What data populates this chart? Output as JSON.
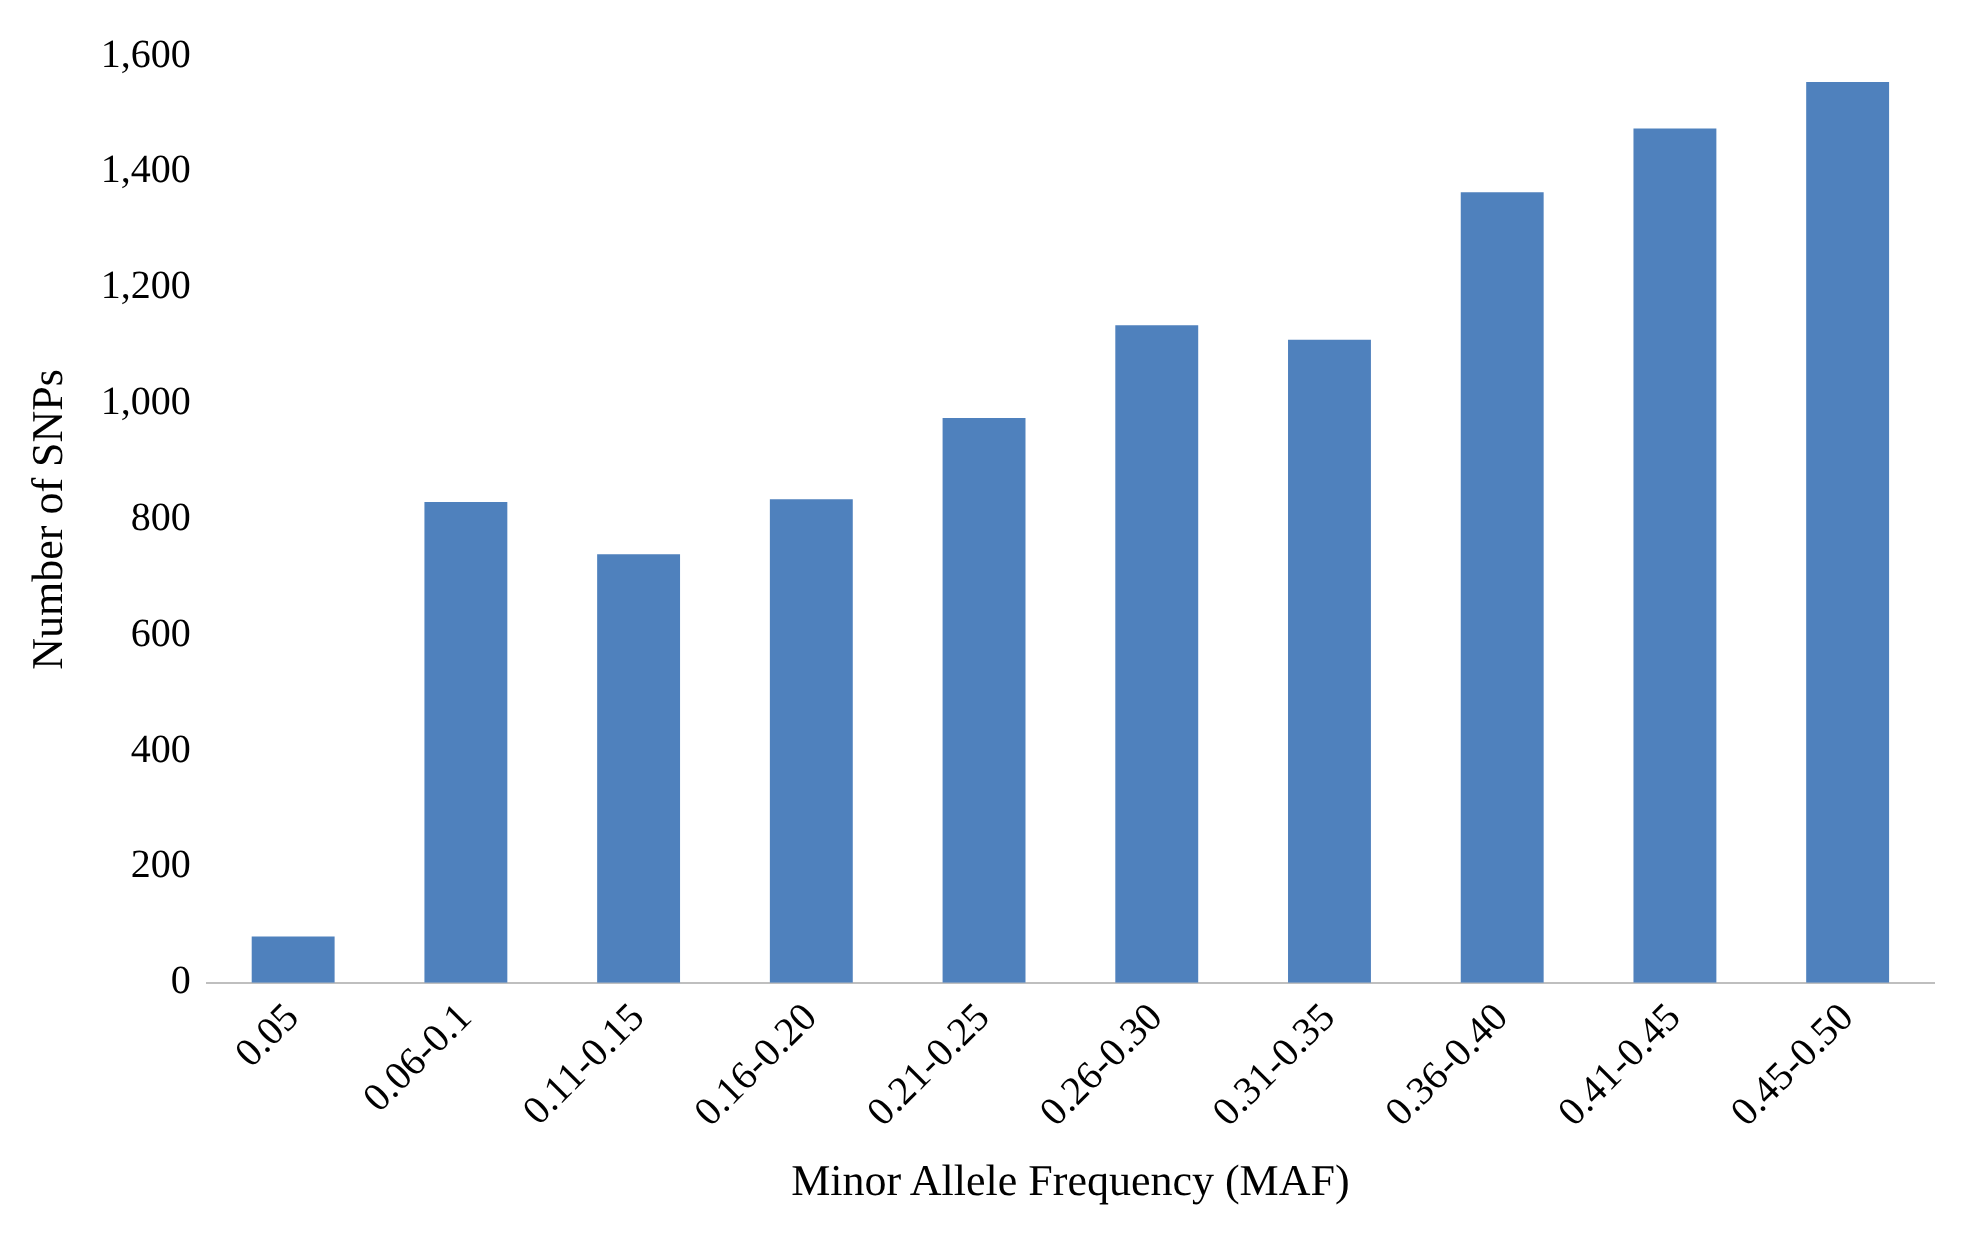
{
  "chart_data": {
    "type": "bar",
    "xlabel": "Minor Allele Frequency (MAF)",
    "ylabel": "Number of SNPs",
    "categories": [
      "0.05",
      "0.06-0.1",
      "0.11-0.15",
      "0.16-0.20",
      "0.21-0.25",
      "0.26-0.30",
      "0.31-0.35",
      "0.36-0.40",
      "0.41-0.45",
      "0.45-0.50"
    ],
    "values": [
      80,
      830,
      740,
      835,
      975,
      1135,
      1110,
      1365,
      1475,
      1555
    ],
    "color": "#4f81bd",
    "ylim": [
      0,
      1600
    ],
    "yticks": [
      0,
      200,
      400,
      600,
      800,
      {
        "value": 1000,
        "label": "1,000"
      },
      {
        "value": 1200,
        "label": "1,200"
      },
      {
        "value": 1400,
        "label": "1,400"
      },
      {
        "value": 1600,
        "label": "1,600"
      }
    ],
    "grid": false,
    "legend": false
  }
}
